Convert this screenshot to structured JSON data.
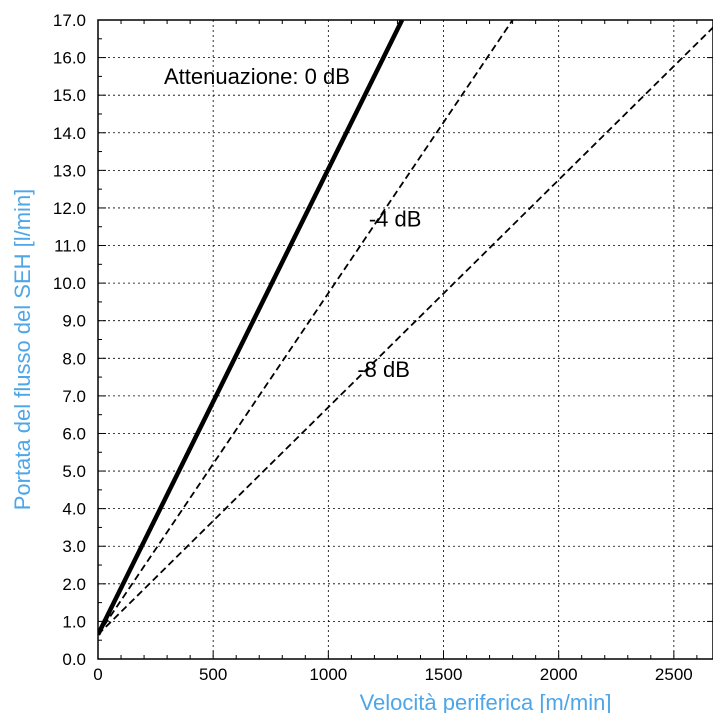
{
  "chart_data": {
    "type": "line",
    "xlabel": "Velocità periferica [m/min]",
    "ylabel": "Portata del flusso del SEH [l/min]",
    "xlim": [
      0,
      2670
    ],
    "ylim": [
      0,
      17
    ],
    "x_ticks": [
      0,
      500,
      1000,
      1500,
      2000,
      2500
    ],
    "x_tick_labels": [
      "0",
      "500",
      "1000",
      "1500",
      "2000",
      "2500"
    ],
    "y_ticks": [
      0,
      1,
      2,
      3,
      4,
      5,
      6,
      7,
      8,
      9,
      10,
      11,
      12,
      13,
      14,
      15,
      16,
      17
    ],
    "y_tick_labels": [
      "0.0",
      "1.0",
      "2.0",
      "3.0",
      "4.0",
      "5.0",
      "6.0",
      "7.0",
      "8.0",
      "9.0",
      "10.0",
      "11.0",
      "12.0",
      "13.0",
      "14.0",
      "15.0",
      "16.0",
      "17.0"
    ],
    "grid": true,
    "grid_style": "dotted",
    "axis_label_color": "#4da6e8",
    "series": [
      {
        "label": "Attenuazione: 0 dB",
        "style": "solid",
        "color": "#000000",
        "x": [
          0,
          1320
        ],
        "y": [
          0.65,
          17.0
        ]
      },
      {
        "label": "-4 dB",
        "style": "dashed",
        "color": "#000000",
        "x": [
          0,
          1800
        ],
        "y": [
          0.65,
          17.0
        ]
      },
      {
        "label": "-8 dB",
        "style": "dashed",
        "color": "#000000",
        "x": [
          0,
          2670
        ],
        "y": [
          0.65,
          16.8
        ]
      }
    ],
    "annotations": [
      {
        "text": "Attenuazione: 0 dB",
        "x": 690,
        "y": 15.3
      },
      {
        "text": "-4 dB",
        "x": 1290,
        "y": 11.5
      },
      {
        "text": "-8 dB",
        "x": 1240,
        "y": 7.5
      }
    ]
  }
}
